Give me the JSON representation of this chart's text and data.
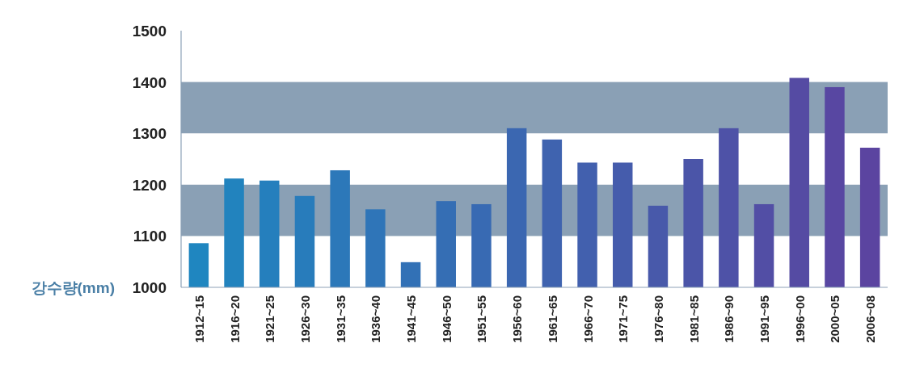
{
  "chart_data": {
    "type": "bar",
    "ylabel": "강수량(mm)",
    "categories": [
      "1912~15",
      "1916~20",
      "1921~25",
      "1926~30",
      "1931~35",
      "1936~40",
      "1941~45",
      "1946~50",
      "1951~55",
      "1956~60",
      "1961~65",
      "1966~70",
      "1971~75",
      "1976~80",
      "1981~85",
      "1986~90",
      "1991~95",
      "1996~00",
      "2000~05",
      "2006~08"
    ],
    "values": [
      1086,
      1212,
      1208,
      1178,
      1228,
      1152,
      1049,
      1168,
      1162,
      1310,
      1288,
      1243,
      1243,
      1159,
      1250,
      1310,
      1162,
      1408,
      1390,
      1272
    ],
    "colors": [
      "#1f86c0",
      "#2283be",
      "#257fbd",
      "#287cbb",
      "#2c78b9",
      "#2f75b8",
      "#3271b6",
      "#356eb4",
      "#386ab3",
      "#3b67b1",
      "#3f63af",
      "#4260ae",
      "#455cac",
      "#4859aa",
      "#4b55a8",
      "#4e52a7",
      "#524ea5",
      "#554ba3",
      "#5847a2",
      "#5b44a0"
    ],
    "ylim": [
      1000,
      1500
    ],
    "yticks": [
      1000,
      1100,
      1200,
      1300,
      1400,
      1500
    ],
    "grid": false,
    "bands": [
      {
        "axis": "y",
        "from": 1100,
        "to": 1200,
        "color": "#8aa0b5"
      },
      {
        "axis": "y",
        "from": 1300,
        "to": 1400,
        "color": "#8aa0b5"
      }
    ]
  }
}
